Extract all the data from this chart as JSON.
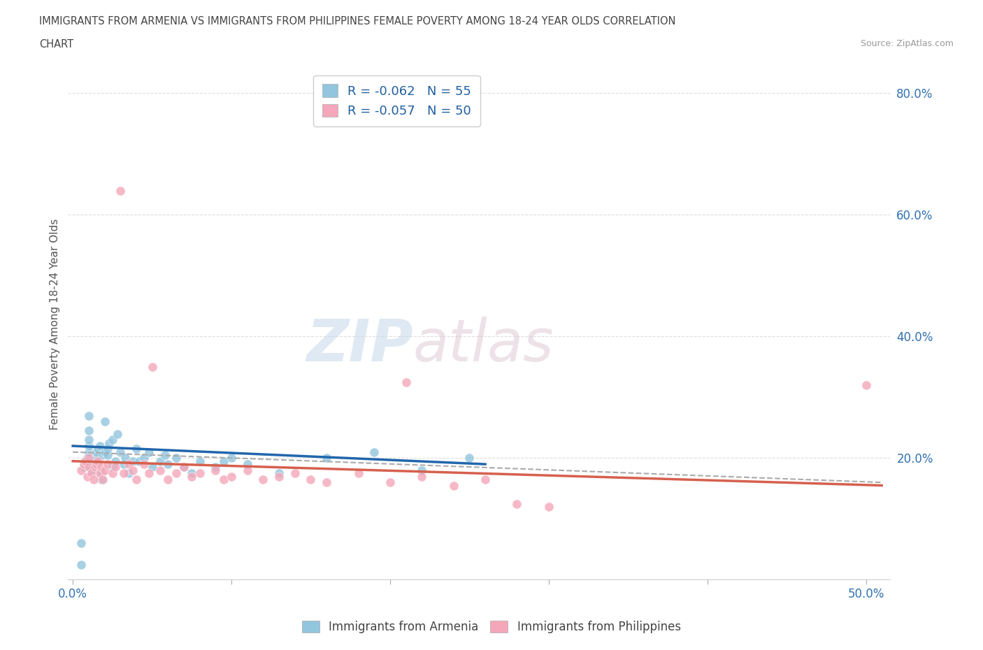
{
  "title_line1": "IMMIGRANTS FROM ARMENIA VS IMMIGRANTS FROM PHILIPPINES FEMALE POVERTY AMONG 18-24 YEAR OLDS CORRELATION",
  "title_line2": "CHART",
  "source_text": "Source: ZipAtlas.com",
  "ylabel": "Female Poverty Among 18-24 Year Olds",
  "watermark_zip": "ZIP",
  "watermark_atlas": "atlas",
  "legend_armenia": "R = -0.062   N = 55",
  "legend_philippines": "R = -0.057   N = 50",
  "legend_label_armenia": "Immigrants from Armenia",
  "legend_label_philippines": "Immigrants from Philippines",
  "armenia_color": "#92c5de",
  "philippines_color": "#f4a7b9",
  "armenia_line_color": "#2166ac",
  "philippines_line_color": "#d6604d",
  "dashed_line_color": "#aaaaaa",
  "background_color": "#ffffff",
  "grid_color": "#dddddd",
  "ylim": [
    0.0,
    0.84
  ],
  "xlim": [
    -0.003,
    0.515
  ],
  "y_ticks_right_labels": [
    "80.0%",
    "60.0%",
    "40.0%",
    "20.0%"
  ],
  "y_ticks_right_vals": [
    0.8,
    0.6,
    0.4,
    0.2
  ],
  "armenia_scatter_x": [
    0.005,
    0.005,
    0.007,
    0.008,
    0.009,
    0.01,
    0.01,
    0.01,
    0.01,
    0.01,
    0.012,
    0.013,
    0.014,
    0.015,
    0.015,
    0.016,
    0.017,
    0.018,
    0.018,
    0.019,
    0.02,
    0.02,
    0.022,
    0.022,
    0.023,
    0.025,
    0.025,
    0.027,
    0.028,
    0.03,
    0.032,
    0.033,
    0.035,
    0.038,
    0.04,
    0.042,
    0.045,
    0.048,
    0.05,
    0.055,
    0.058,
    0.06,
    0.065,
    0.07,
    0.075,
    0.08,
    0.09,
    0.095,
    0.1,
    0.11,
    0.13,
    0.16,
    0.19,
    0.22,
    0.25
  ],
  "armenia_scatter_y": [
    0.025,
    0.06,
    0.185,
    0.195,
    0.2,
    0.21,
    0.22,
    0.23,
    0.245,
    0.27,
    0.18,
    0.19,
    0.195,
    0.2,
    0.21,
    0.215,
    0.22,
    0.165,
    0.175,
    0.205,
    0.21,
    0.26,
    0.205,
    0.215,
    0.225,
    0.185,
    0.23,
    0.195,
    0.24,
    0.21,
    0.19,
    0.2,
    0.175,
    0.195,
    0.215,
    0.195,
    0.2,
    0.21,
    0.185,
    0.195,
    0.205,
    0.19,
    0.2,
    0.185,
    0.175,
    0.195,
    0.185,
    0.195,
    0.2,
    0.19,
    0.175,
    0.2,
    0.21,
    0.18,
    0.2
  ],
  "philippines_scatter_x": [
    0.005,
    0.007,
    0.008,
    0.009,
    0.01,
    0.01,
    0.012,
    0.013,
    0.014,
    0.015,
    0.016,
    0.017,
    0.018,
    0.019,
    0.02,
    0.022,
    0.025,
    0.027,
    0.03,
    0.032,
    0.035,
    0.038,
    0.04,
    0.045,
    0.048,
    0.05,
    0.055,
    0.06,
    0.065,
    0.07,
    0.075,
    0.08,
    0.09,
    0.095,
    0.1,
    0.11,
    0.12,
    0.13,
    0.14,
    0.15,
    0.16,
    0.18,
    0.2,
    0.21,
    0.22,
    0.24,
    0.26,
    0.28,
    0.3,
    0.5
  ],
  "philippines_scatter_y": [
    0.18,
    0.19,
    0.195,
    0.17,
    0.185,
    0.2,
    0.175,
    0.165,
    0.185,
    0.19,
    0.195,
    0.175,
    0.185,
    0.165,
    0.18,
    0.19,
    0.175,
    0.185,
    0.64,
    0.175,
    0.19,
    0.18,
    0.165,
    0.19,
    0.175,
    0.35,
    0.18,
    0.165,
    0.175,
    0.185,
    0.17,
    0.175,
    0.18,
    0.165,
    0.17,
    0.18,
    0.165,
    0.17,
    0.175,
    0.165,
    0.16,
    0.175,
    0.16,
    0.325,
    0.17,
    0.155,
    0.165,
    0.125,
    0.12,
    0.32
  ],
  "armenia_trend_x": [
    0.0,
    0.26
  ],
  "armenia_trend_y": [
    0.22,
    0.19
  ],
  "philippines_trend_x": [
    0.0,
    0.51
  ],
  "philippines_trend_y": [
    0.195,
    0.155
  ],
  "dashed_trend_x": [
    0.0,
    0.51
  ],
  "dashed_trend_y": [
    0.21,
    0.16
  ]
}
